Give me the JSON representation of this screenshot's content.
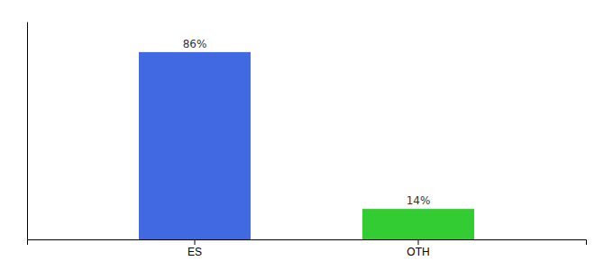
{
  "chart_data": {
    "type": "bar",
    "categories": [
      "ES",
      "OTH"
    ],
    "values": [
      86,
      14
    ],
    "value_labels": [
      "86%",
      "14%"
    ],
    "colors": [
      "#4169E1",
      "#33cc33"
    ],
    "ylim": [
      0,
      100
    ],
    "data_labels": true,
    "tick_labels": "x"
  }
}
